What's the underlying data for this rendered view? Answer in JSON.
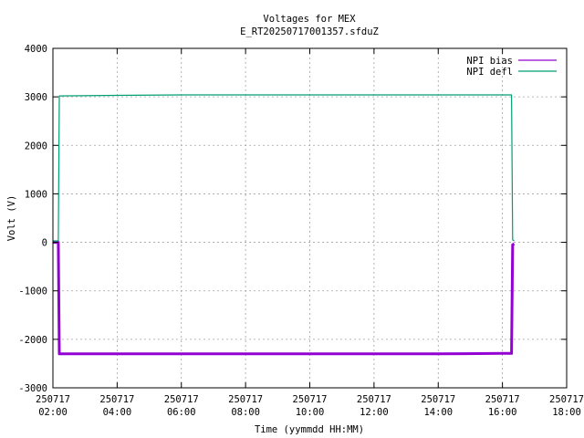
{
  "chart_data": {
    "type": "line",
    "title": "Voltages for MEX",
    "subtitle": "E_RT20250717001357.sfduZ",
    "xlabel": "Time (yymmdd HH:MM)",
    "ylabel": "Volt (V)",
    "xlim": [
      "2025-07-17 02:00",
      "2025-07-17 18:00"
    ],
    "ylim": [
      -3000,
      4000
    ],
    "grid": true,
    "legend_position": "top-right",
    "x_ticks": [
      {
        "date": "250717",
        "time": "02:00"
      },
      {
        "date": "250717",
        "time": "04:00"
      },
      {
        "date": "250717",
        "time": "06:00"
      },
      {
        "date": "250717",
        "time": "08:00"
      },
      {
        "date": "250717",
        "time": "10:00"
      },
      {
        "date": "250717",
        "time": "12:00"
      },
      {
        "date": "250717",
        "time": "14:00"
      },
      {
        "date": "250717",
        "time": "16:00"
      },
      {
        "date": "250717",
        "time": "18:00"
      }
    ],
    "y_ticks": [
      "-3000",
      "-2000",
      "-1000",
      "0",
      "1000",
      "2000",
      "3000",
      "4000"
    ],
    "series": [
      {
        "name": "NPI bias",
        "color": "#9400d3",
        "x": [
          "2025-07-17 02:00",
          "2025-07-17 02:10",
          "2025-07-17 02:12",
          "2025-07-17 04:00",
          "2025-07-17 06:00",
          "2025-07-17 08:00",
          "2025-07-17 10:00",
          "2025-07-17 12:00",
          "2025-07-17 14:00",
          "2025-07-17 16:00",
          "2025-07-17 16:17",
          "2025-07-17 16:19",
          "2025-07-17 16:22"
        ],
        "y": [
          0,
          0,
          -2300,
          -2300,
          -2300,
          -2300,
          -2300,
          -2300,
          -2300,
          -2290,
          -2290,
          -50,
          -30
        ]
      },
      {
        "name": "NPI defl",
        "color": "#009e73",
        "x": [
          "2025-07-17 02:00",
          "2025-07-17 02:10",
          "2025-07-17 02:12",
          "2025-07-17 04:00",
          "2025-07-17 06:00",
          "2025-07-17 08:00",
          "2025-07-17 10:00",
          "2025-07-17 12:00",
          "2025-07-17 14:00",
          "2025-07-17 16:00",
          "2025-07-17 16:17",
          "2025-07-17 16:19",
          "2025-07-17 16:22"
        ],
        "y": [
          30,
          30,
          3020,
          3030,
          3040,
          3040,
          3040,
          3040,
          3040,
          3040,
          3040,
          50,
          30
        ]
      }
    ]
  }
}
